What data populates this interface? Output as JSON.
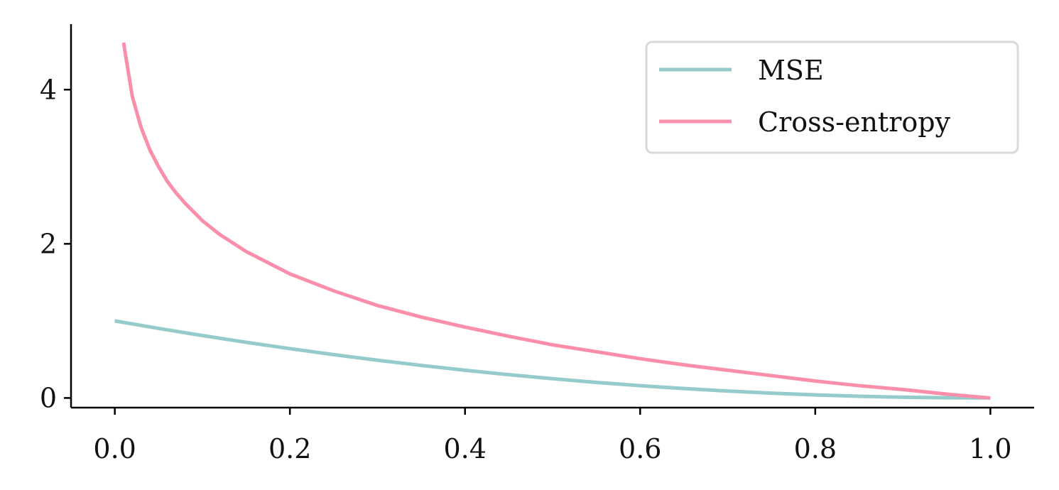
{
  "chart_data": {
    "type": "line",
    "title": "",
    "xlabel": "",
    "ylabel": "",
    "xlim": [
      -0.05,
      1.05
    ],
    "ylim": [
      -0.125,
      4.85
    ],
    "x_ticks": [
      0.0,
      0.2,
      0.4,
      0.6,
      0.8,
      1.0
    ],
    "x_tick_labels": [
      "0.0",
      "0.2",
      "0.4",
      "0.6",
      "0.8",
      "1.0"
    ],
    "y_ticks": [
      0,
      2,
      4
    ],
    "y_tick_labels": [
      "0",
      "2",
      "4"
    ],
    "grid": false,
    "legend_position": "top-right",
    "series": [
      {
        "name": "MSE",
        "color": "#96cbcb",
        "x": [
          0.0,
          0.05,
          0.1,
          0.15,
          0.2,
          0.25,
          0.3,
          0.35,
          0.4,
          0.45,
          0.5,
          0.55,
          0.6,
          0.65,
          0.7,
          0.75,
          0.8,
          0.85,
          0.9,
          0.95,
          1.0
        ],
        "y": [
          1.0,
          0.9025,
          0.81,
          0.7225,
          0.64,
          0.5625,
          0.49,
          0.4225,
          0.36,
          0.3025,
          0.25,
          0.2025,
          0.16,
          0.1225,
          0.09,
          0.0625,
          0.04,
          0.0225,
          0.01,
          0.0025,
          0.0
        ]
      },
      {
        "name": "Cross-entropy",
        "color": "#fb8fab",
        "x": [
          0.01,
          0.02,
          0.03,
          0.04,
          0.05,
          0.06,
          0.07,
          0.08,
          0.1,
          0.12,
          0.15,
          0.2,
          0.25,
          0.3,
          0.35,
          0.4,
          0.45,
          0.5,
          0.55,
          0.6,
          0.65,
          0.7,
          0.75,
          0.8,
          0.85,
          0.9,
          0.95,
          1.0
        ],
        "y": [
          4.61,
          3.91,
          3.51,
          3.22,
          3.0,
          2.81,
          2.66,
          2.53,
          2.3,
          2.12,
          1.9,
          1.61,
          1.39,
          1.2,
          1.05,
          0.92,
          0.8,
          0.69,
          0.6,
          0.51,
          0.43,
          0.36,
          0.29,
          0.22,
          0.16,
          0.11,
          0.05,
          0.0
        ]
      }
    ]
  }
}
